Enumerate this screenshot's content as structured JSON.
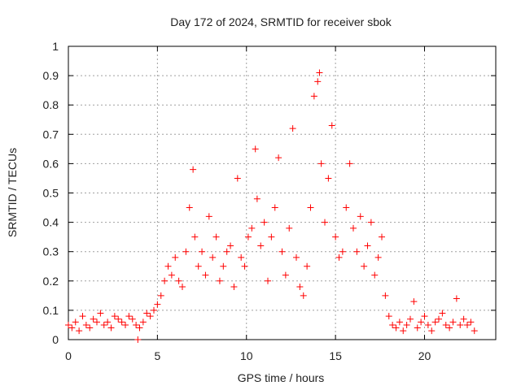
{
  "chart_data": {
    "type": "scatter",
    "title": "Day 172 of 2024, SRMTID for receiver sbok",
    "xlabel": "GPS time / hours",
    "ylabel": "SRMTID / TECUs",
    "xlim": [
      0,
      24
    ],
    "ylim": [
      0,
      1
    ],
    "xticks": [
      0,
      5,
      10,
      15,
      20
    ],
    "yticks": [
      0,
      0.1,
      0.2,
      0.3,
      0.4,
      0.5,
      0.6,
      0.7,
      0.8,
      0.9,
      1
    ],
    "xtick_labels": [
      "0",
      "5",
      "10",
      "15",
      "20"
    ],
    "ytick_labels": [
      "0",
      "0.1",
      "0.2",
      "0.3",
      "0.4",
      "0.5",
      "0.6",
      "0.7",
      "0.8",
      "0.9",
      "1"
    ],
    "grid": true,
    "marker": "plus",
    "color": "#ff0000",
    "series": [
      {
        "name": "SRMTID",
        "x": [
          0.0,
          0.2,
          0.4,
          0.6,
          0.8,
          1.0,
          1.2,
          1.4,
          1.6,
          1.8,
          2.0,
          2.2,
          2.4,
          2.6,
          2.8,
          3.0,
          3.2,
          3.4,
          3.6,
          3.8,
          3.9,
          4.0,
          4.2,
          4.4,
          4.6,
          4.8,
          5.0,
          5.2,
          5.4,
          5.6,
          5.8,
          6.0,
          6.2,
          6.4,
          6.6,
          6.8,
          7.0,
          7.1,
          7.3,
          7.5,
          7.7,
          7.9,
          8.1,
          8.3,
          8.5,
          8.7,
          8.9,
          9.1,
          9.3,
          9.5,
          9.7,
          9.9,
          10.1,
          10.3,
          10.5,
          10.6,
          10.8,
          11.0,
          11.2,
          11.4,
          11.6,
          11.8,
          12.0,
          12.2,
          12.4,
          12.6,
          12.8,
          13.0,
          13.2,
          13.4,
          13.6,
          13.8,
          14.0,
          14.1,
          14.2,
          14.4,
          14.6,
          14.8,
          15.0,
          15.2,
          15.4,
          15.6,
          15.8,
          16.0,
          16.2,
          16.4,
          16.6,
          16.8,
          17.0,
          17.2,
          17.4,
          17.6,
          17.8,
          18.0,
          18.2,
          18.4,
          18.6,
          18.8,
          19.0,
          19.2,
          19.4,
          19.6,
          19.8,
          20.0,
          20.2,
          20.4,
          20.6,
          20.8,
          21.0,
          21.2,
          21.4,
          21.6,
          21.8,
          22.0,
          22.2,
          22.4,
          22.6,
          22.8
        ],
        "y": [
          0.05,
          0.04,
          0.06,
          0.03,
          0.08,
          0.05,
          0.04,
          0.07,
          0.06,
          0.09,
          0.05,
          0.06,
          0.04,
          0.08,
          0.07,
          0.06,
          0.05,
          0.08,
          0.07,
          0.05,
          0.0,
          0.04,
          0.06,
          0.09,
          0.08,
          0.1,
          0.12,
          0.15,
          0.2,
          0.25,
          0.22,
          0.28,
          0.2,
          0.18,
          0.3,
          0.45,
          0.58,
          0.35,
          0.25,
          0.3,
          0.22,
          0.42,
          0.28,
          0.35,
          0.2,
          0.25,
          0.3,
          0.32,
          0.18,
          0.55,
          0.28,
          0.25,
          0.35,
          0.38,
          0.65,
          0.48,
          0.32,
          0.4,
          0.2,
          0.35,
          0.45,
          0.62,
          0.3,
          0.22,
          0.38,
          0.72,
          0.28,
          0.18,
          0.15,
          0.25,
          0.45,
          0.83,
          0.88,
          0.91,
          0.6,
          0.4,
          0.55,
          0.73,
          0.35,
          0.28,
          0.3,
          0.45,
          0.6,
          0.38,
          0.3,
          0.42,
          0.25,
          0.32,
          0.4,
          0.22,
          0.28,
          0.35,
          0.15,
          0.08,
          0.05,
          0.04,
          0.06,
          0.03,
          0.05,
          0.07,
          0.13,
          0.04,
          0.06,
          0.08,
          0.05,
          0.03,
          0.06,
          0.07,
          0.09,
          0.05,
          0.04,
          0.06,
          0.14,
          0.05,
          0.07,
          0.05,
          0.06,
          0.03
        ]
      }
    ]
  }
}
